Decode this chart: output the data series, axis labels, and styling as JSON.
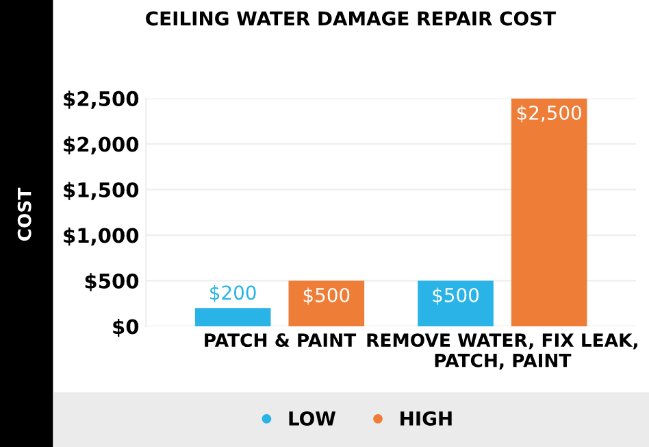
{
  "chart_data": {
    "type": "bar",
    "title": "CEILING WATER DAMAGE REPAIR COST",
    "ylabel": "COST",
    "categories": [
      "PATCH & PAINT",
      "REMOVE WATER, FIX LEAK,\nPATCH, PAINT"
    ],
    "series": [
      {
        "name": "LOW",
        "color": "#29b3e6",
        "values": [
          200,
          500
        ],
        "value_labels": [
          "$200",
          "$500"
        ]
      },
      {
        "name": "HIGH",
        "color": "#ee7d38",
        "values": [
          500,
          2500
        ],
        "value_labels": [
          "$500",
          "$2,500"
        ]
      }
    ],
    "ylim": [
      0,
      2500
    ],
    "yticks": [
      {
        "value": 0,
        "label": "$0"
      },
      {
        "value": 500,
        "label": "$500"
      },
      {
        "value": 1000,
        "label": "$1,000"
      },
      {
        "value": 1500,
        "label": "$1,500"
      },
      {
        "value": 2000,
        "label": "$2,000"
      },
      {
        "value": 2500,
        "label": "$2,500"
      }
    ],
    "grid": "y",
    "legend": "bottom"
  }
}
